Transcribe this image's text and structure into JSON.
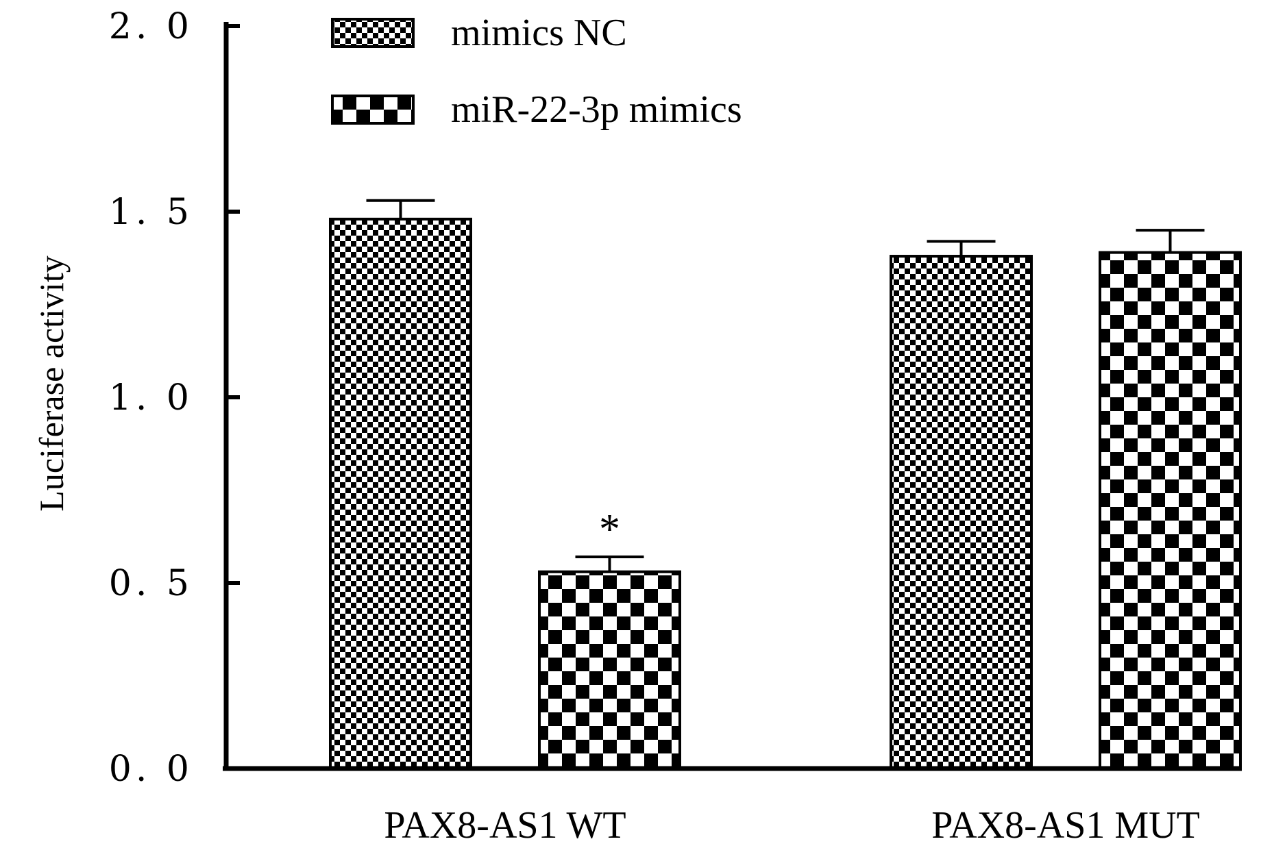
{
  "chart_data": {
    "type": "bar",
    "ylabel": "Luciferase activity",
    "ylim": [
      0,
      2.0
    ],
    "yticks": [
      "2. 0",
      "1. 5",
      "1. 0",
      "0. 5",
      "0. 0"
    ],
    "categories": [
      "PAX8-AS1 WT",
      "PAX8-AS1 MUT"
    ],
    "series": [
      {
        "name": "mimics NC",
        "values": [
          1.48,
          1.38
        ],
        "errors": [
          0.05,
          0.04
        ],
        "pattern": "fine-checker"
      },
      {
        "name": "miR-22-3p mimics",
        "values": [
          0.53,
          1.39
        ],
        "errors": [
          0.04,
          0.06
        ],
        "pattern": "coarse-checker"
      }
    ],
    "annotations": [
      {
        "category_index": 0,
        "series_index": 1,
        "text": "*"
      }
    ],
    "legend_position": "top-left",
    "grid": false
  }
}
